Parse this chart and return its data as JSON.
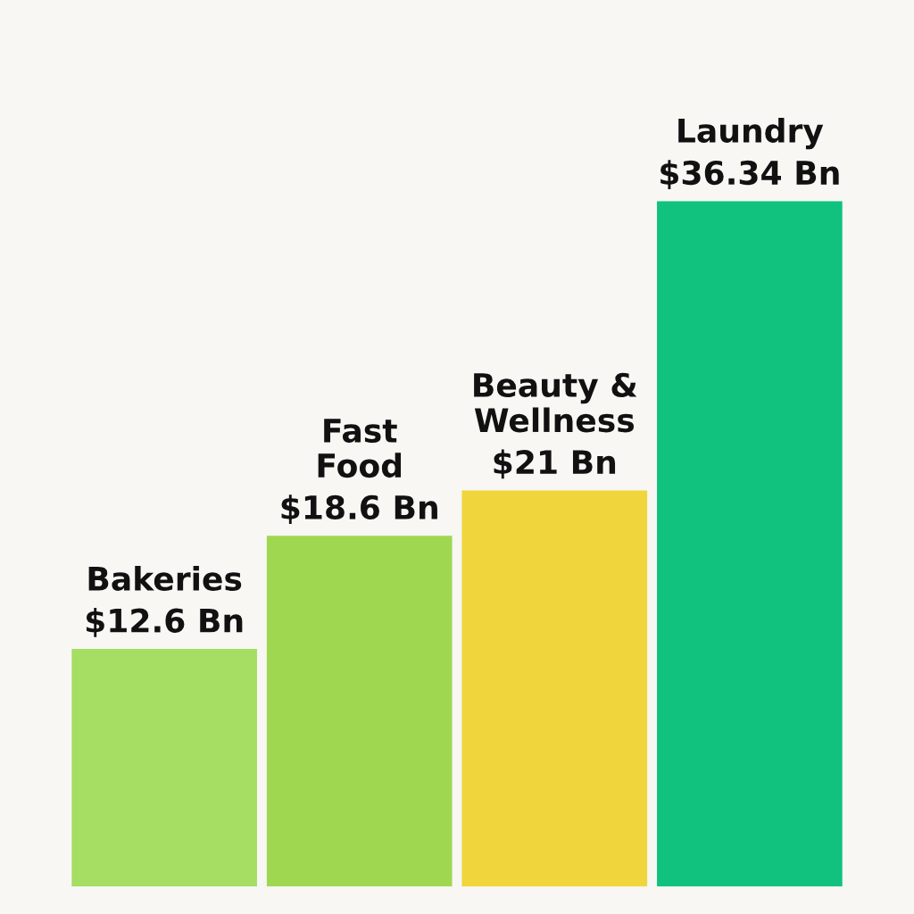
{
  "chart_data": {
    "type": "bar",
    "categories": [
      "Bakeries",
      "Fast\nFood",
      "Beauty &\nWellness",
      "Laundry"
    ],
    "values": [
      12.6,
      18.6,
      21,
      36.34
    ],
    "value_labels": [
      "$12.6 Bn",
      "$18.6 Bn",
      "$21 Bn",
      "$36.34 Bn"
    ],
    "colors": [
      "#a6dd63",
      "#9fd850",
      "#f0d63c",
      "#10c27e"
    ],
    "tick_labels": false
  }
}
